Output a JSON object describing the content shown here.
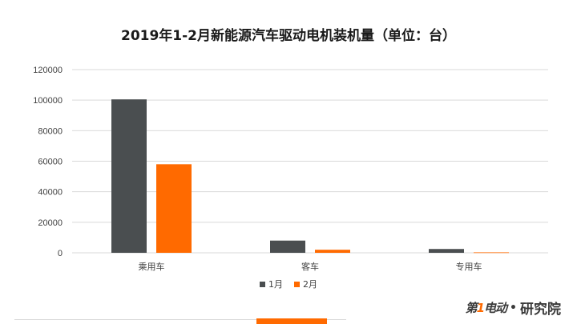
{
  "colors": {
    "series_1": "#4a4e50",
    "series_2": "#ff6a00",
    "grid": "#d9d9d9"
  },
  "chart_data": {
    "type": "bar",
    "title": "2019年1-2月新能源汽车驱动电机装机量（单位：台）",
    "categories": [
      "乘用车",
      "客车",
      "专用车"
    ],
    "series": [
      {
        "name": "1月",
        "values": [
          100500,
          8000,
          2500
        ]
      },
      {
        "name": "2月",
        "values": [
          58000,
          2000,
          300
        ]
      }
    ],
    "yticks": [
      "0",
      "20000",
      "40000",
      "60000",
      "80000",
      "100000",
      "120000"
    ],
    "ylim": [
      0,
      120000
    ],
    "grid": true,
    "legend": "bottom"
  },
  "branding": {
    "logo_main": "第",
    "logo_accent": "1",
    "logo_tail": "电动",
    "separator": "•",
    "suffix": "研究院"
  }
}
